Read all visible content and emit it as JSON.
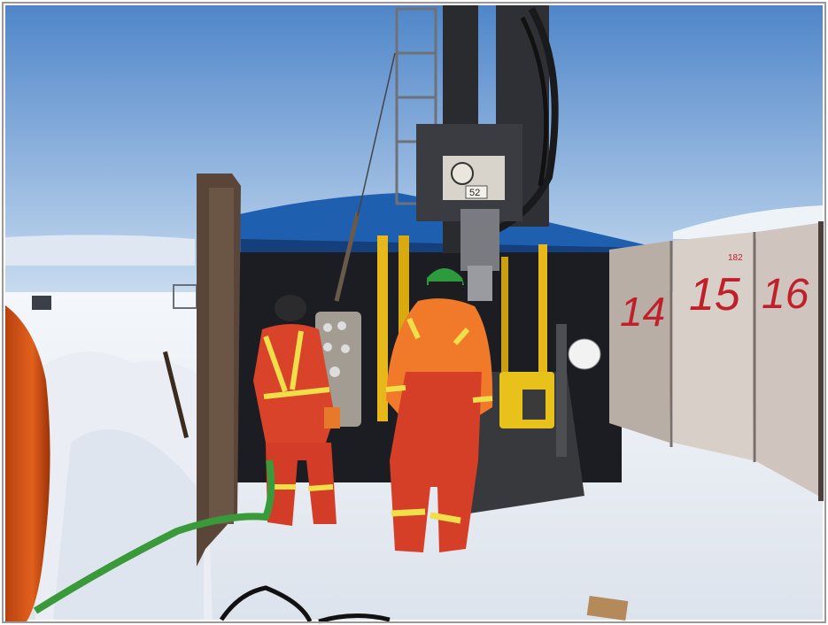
{
  "photo": {
    "panel_numbers": [
      "14",
      "15",
      "16"
    ],
    "panel_small_mark": "182",
    "head_plate": "52",
    "colors": {
      "sky_top": "#4f86c9",
      "sky_bottom": "#c9dcf0",
      "snow": "#eef2f7",
      "tarp": "#1f5fb0",
      "coverall": "#e0462a",
      "hivis_orange": "#f07a2a",
      "hardhat": "#2e9a3e",
      "panel": "#d8cfc8",
      "number_paint": "#c0202a",
      "hose": "#3a9a3a"
    }
  }
}
